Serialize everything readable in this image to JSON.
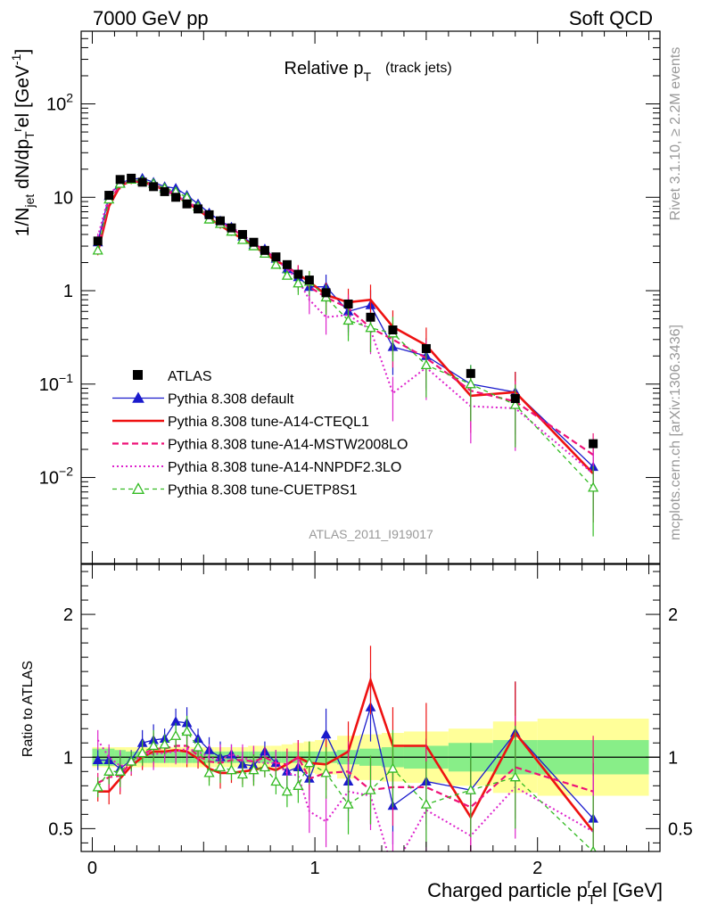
{
  "header": {
    "energy": "7000 GeV pp",
    "process": "Soft QCD",
    "rivet": "Rivet 3.1.10, ≥ 2.2M events",
    "mcplots": "mcplots.cern.ch [arXiv:1306.3436]",
    "analysis": "ATLAS_2011_I919017"
  },
  "legend_entries": [
    {
      "label": "ATLAS",
      "color": "#000000",
      "style": "data"
    },
    {
      "label": "Pythia 8.308 default",
      "color": "#1a1acc",
      "style": "solid-triangle"
    },
    {
      "label": "Pythia 8.308 tune-A14-CTEQL1",
      "color": "#ee1111",
      "style": "solid-thick"
    },
    {
      "label": "Pythia 8.308 tune-A14-MSTW2008LO",
      "color": "#ee1177",
      "style": "dashed"
    },
    {
      "label": "Pythia 8.308 tune-A14-NNPDF2.3LO",
      "color": "#dd22cc",
      "style": "dotted"
    },
    {
      "label": "Pythia 8.308 tune-CUETP8S1",
      "color": "#33bb22",
      "style": "dashed-open-triangle"
    }
  ],
  "chart_data": [
    {
      "type": "line",
      "title": "Relative p_T (track jets)",
      "title_main": "Relative p",
      "title_sub": "T",
      "title_paren": "(track jets)",
      "ylabel": "1/N_jet dN/dp_T^rel [GeV^-1]",
      "yscale": "log",
      "xlim": [
        -0.05,
        2.55
      ],
      "ylim": [
        0.0012,
        600
      ],
      "yticks": [
        {
          "v": 0.01,
          "base": "10",
          "exp": "−2"
        },
        {
          "v": 0.1,
          "base": "10",
          "exp": "−1"
        },
        {
          "v": 1,
          "label": "1"
        },
        {
          "v": 10,
          "label": "10"
        },
        {
          "v": 100,
          "base": "10",
          "exp": "2"
        }
      ],
      "x": [
        0.025,
        0.075,
        0.125,
        0.175,
        0.225,
        0.275,
        0.325,
        0.375,
        0.425,
        0.475,
        0.525,
        0.575,
        0.625,
        0.675,
        0.725,
        0.775,
        0.825,
        0.875,
        0.925,
        0.975,
        1.05,
        1.15,
        1.25,
        1.35,
        1.5,
        1.7,
        1.9,
        2.25
      ],
      "series": [
        {
          "name": "ATLAS",
          "values": [
            3.4,
            10.5,
            15.5,
            16.0,
            14.5,
            13.0,
            11.5,
            10.0,
            8.5,
            7.5,
            6.5,
            5.6,
            4.7,
            4.0,
            3.3,
            2.7,
            2.3,
            1.9,
            1.5,
            1.3,
            0.95,
            0.72,
            0.52,
            0.38,
            0.24,
            0.13,
            0.07,
            0.023
          ]
        },
        {
          "name": "Pythia 8.308 default",
          "values": [
            3.3,
            10.3,
            14.2,
            15.6,
            16.0,
            14.5,
            13.0,
            12.5,
            10.5,
            8.5,
            6.8,
            5.6,
            4.8,
            3.8,
            3.1,
            2.8,
            2.2,
            1.7,
            1.4,
            1.1,
            1.1,
            0.6,
            0.7,
            0.25,
            0.2,
            0.1,
            0.082,
            0.013
          ]
        },
        {
          "name": "Pythia 8.308 tune-A14-CTEQL1",
          "values": [
            2.6,
            8.0,
            13.2,
            15.0,
            14.5,
            13.5,
            12.0,
            10.5,
            8.8,
            7.4,
            6.0,
            5.0,
            4.2,
            3.6,
            3.0,
            2.5,
            2.1,
            1.8,
            1.5,
            1.25,
            0.9,
            0.75,
            0.8,
            0.41,
            0.26,
            0.075,
            0.082,
            0.011
          ]
        },
        {
          "name": "Pythia 8.308 tune-A14-MSTW2008LO",
          "values": [
            2.8,
            9.0,
            13.5,
            15.5,
            14.8,
            13.8,
            12.2,
            10.8,
            9.2,
            7.6,
            6.3,
            5.4,
            4.6,
            3.9,
            3.2,
            2.7,
            2.2,
            1.8,
            1.5,
            1.1,
            0.85,
            0.65,
            0.4,
            0.3,
            0.19,
            0.085,
            0.065,
            0.0175
          ]
        },
        {
          "name": "Pythia 8.308 tune-A14-NNPDF2.3LO",
          "values": [
            3.8,
            10.5,
            14.5,
            15.2,
            15.0,
            13.2,
            11.8,
            10.4,
            9.0,
            7.8,
            6.5,
            5.5,
            4.8,
            4.0,
            3.2,
            2.6,
            2.2,
            1.7,
            1.3,
            0.8,
            0.52,
            0.55,
            0.38,
            0.08,
            0.15,
            0.058,
            0.055,
            0.011
          ]
        },
        {
          "name": "Pythia 8.308 tune-CUETP8S1",
          "values": [
            2.7,
            9.5,
            14.0,
            15.5,
            15.0,
            14.0,
            12.5,
            11.5,
            10.0,
            8.0,
            5.8,
            5.2,
            4.3,
            3.5,
            3.0,
            2.5,
            1.9,
            1.45,
            1.2,
            1.25,
            0.85,
            0.48,
            0.4,
            0.35,
            0.16,
            0.1,
            0.06,
            0.0078
          ]
        }
      ]
    },
    {
      "type": "line",
      "ylabel": "Ratio to ATLAS",
      "xlabel": "Charged particle p_T^rel [GeV]",
      "xlabel_main": "Charged particle p",
      "xlabel_sub": "T",
      "xlabel_sup": "r",
      "xlabel_tail": "el [GeV]",
      "xlim": [
        -0.05,
        2.55
      ],
      "ylim": [
        0.34,
        2.35
      ],
      "xticks": [
        0,
        1,
        2
      ],
      "yticks": [
        0.5,
        1,
        2
      ],
      "uncertainty_bands": {
        "x_edges": [
          0.0,
          0.05,
          0.1,
          0.15,
          0.2,
          0.25,
          0.3,
          0.35,
          0.4,
          0.45,
          0.5,
          0.55,
          0.6,
          0.65,
          0.7,
          0.75,
          0.8,
          0.85,
          0.9,
          0.95,
          1.0,
          1.1,
          1.2,
          1.3,
          1.4,
          1.6,
          1.8,
          2.0,
          2.5
        ],
        "inner": [
          0.06,
          0.06,
          0.05,
          0.04,
          0.04,
          0.04,
          0.04,
          0.04,
          0.04,
          0.04,
          0.04,
          0.04,
          0.04,
          0.04,
          0.04,
          0.04,
          0.04,
          0.04,
          0.04,
          0.04,
          0.04,
          0.05,
          0.06,
          0.07,
          0.08,
          0.1,
          0.12,
          0.12
        ],
        "outer": [
          0.07,
          0.07,
          0.07,
          0.07,
          0.07,
          0.07,
          0.07,
          0.07,
          0.07,
          0.07,
          0.07,
          0.07,
          0.07,
          0.07,
          0.08,
          0.08,
          0.08,
          0.09,
          0.1,
          0.11,
          0.12,
          0.15,
          0.16,
          0.17,
          0.18,
          0.2,
          0.25,
          0.27
        ],
        "inner_color": "#88ee88",
        "outer_color": "#ffff99"
      },
      "series": [
        {
          "name": "Pythia 8.308 default",
          "values": [
            0.98,
            0.98,
            0.92,
            0.98,
            1.1,
            1.12,
            1.13,
            1.25,
            1.24,
            1.13,
            1.05,
            1.0,
            1.02,
            0.95,
            0.94,
            1.04,
            0.96,
            0.9,
            0.93,
            0.85,
            1.16,
            0.83,
            1.35,
            0.66,
            0.83,
            0.77,
            1.17,
            0.57
          ]
        },
        {
          "name": "Pythia 8.308 tune-A14-CTEQL1",
          "values": [
            0.76,
            0.76,
            0.85,
            0.94,
            1.0,
            1.04,
            1.04,
            1.05,
            1.04,
            0.99,
            0.92,
            0.89,
            0.89,
            0.9,
            0.91,
            0.93,
            0.91,
            0.95,
            1.0,
            0.96,
            0.95,
            1.04,
            1.54,
            1.08,
            1.08,
            0.58,
            1.17,
            0.48
          ]
        },
        {
          "name": "Pythia 8.308 tune-A14-MSTW2008LO",
          "values": [
            0.82,
            0.86,
            0.87,
            0.97,
            1.02,
            1.06,
            1.06,
            1.08,
            1.08,
            1.01,
            0.97,
            0.96,
            0.98,
            0.98,
            0.97,
            1.0,
            0.96,
            0.95,
            1.0,
            0.85,
            0.89,
            0.9,
            0.77,
            0.79,
            0.79,
            0.65,
            0.93,
            0.76
          ]
        },
        {
          "name": "Pythia 8.308 tune-A14-NNPDF2.3LO",
          "values": [
            1.12,
            1.0,
            0.94,
            0.95,
            1.03,
            1.02,
            1.03,
            1.04,
            1.06,
            1.04,
            1.0,
            0.98,
            1.02,
            1.0,
            0.97,
            0.96,
            0.96,
            0.89,
            0.87,
            0.62,
            0.55,
            0.76,
            0.73,
            0.21,
            0.63,
            0.45,
            0.79,
            0.48
          ]
        },
        {
          "name": "Pythia 8.308 tune-CUETP8S1",
          "values": [
            0.79,
            0.9,
            0.9,
            0.97,
            1.03,
            1.08,
            1.09,
            1.15,
            1.18,
            1.07,
            0.89,
            0.93,
            0.91,
            0.88,
            0.91,
            0.93,
            0.83,
            0.76,
            0.8,
            0.96,
            0.89,
            0.67,
            0.77,
            0.92,
            0.67,
            0.77,
            0.86,
            0.34
          ]
        }
      ]
    }
  ]
}
